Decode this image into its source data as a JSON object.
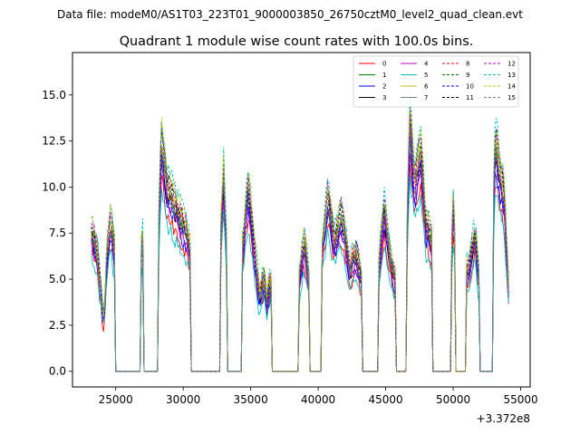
{
  "chart_data": {
    "type": "line",
    "suptitle": "Data file: modeM0/AS1T03_223T01_9000003850_26750cztM0_level2_quad_clean.evt",
    "title": "Quadrant 1 module wise count rates with 100.0s bins.",
    "xlabel": "",
    "ylabel": "",
    "x_offset_label": "+3.372e8",
    "xlim": [
      21800,
      55700
    ],
    "ylim": [
      -0.85,
      17.3
    ],
    "xticks": [
      25000,
      30000,
      35000,
      40000,
      45000,
      50000,
      55000
    ],
    "xtick_labels": [
      "25000",
      "30000",
      "35000",
      "40000",
      "45000",
      "50000",
      "55000"
    ],
    "yticks": [
      0.0,
      2.5,
      5.0,
      7.5,
      10.0,
      12.5,
      15.0
    ],
    "ytick_labels": [
      "0.0",
      "2.5",
      "5.0",
      "7.5",
      "10.0",
      "12.5",
      "15.0"
    ],
    "legend_location": "upper right",
    "legend_columns": 4,
    "segments": [
      {
        "start": 23200,
        "end": 24900,
        "profile": [
          [
            0,
            7.5
          ],
          [
            0.25,
            6.5
          ],
          [
            0.48,
            3.1
          ],
          [
            0.56,
            3.0
          ],
          [
            0.7,
            6.8
          ],
          [
            0.85,
            8.0
          ],
          [
            1,
            6.5
          ]
        ]
      },
      {
        "start": 26900,
        "end": 27050,
        "profile": [
          [
            0,
            6.5
          ],
          [
            0.5,
            7.6
          ],
          [
            1,
            6.2
          ]
        ]
      },
      {
        "start": 28200,
        "end": 30500,
        "profile": [
          [
            0,
            8.0
          ],
          [
            0.08,
            12.5
          ],
          [
            0.25,
            10.0
          ],
          [
            0.6,
            8.6
          ],
          [
            0.9,
            7.5
          ],
          [
            1,
            6.5
          ]
        ]
      },
      {
        "start": 32800,
        "end": 33200,
        "profile": [
          [
            0,
            8.0
          ],
          [
            0.5,
            10.5
          ],
          [
            1,
            7.0
          ]
        ]
      },
      {
        "start": 34400,
        "end": 36500,
        "profile": [
          [
            0,
            6.5
          ],
          [
            0.2,
            10.0
          ],
          [
            0.45,
            6.0
          ],
          [
            0.6,
            4.0
          ],
          [
            0.75,
            5.0
          ],
          [
            0.85,
            3.8
          ],
          [
            1,
            5.0
          ]
        ]
      },
      {
        "start": 38600,
        "end": 39300,
        "profile": [
          [
            0,
            5.0
          ],
          [
            0.5,
            7.0
          ],
          [
            1,
            5.0
          ]
        ]
      },
      {
        "start": 40300,
        "end": 43200,
        "profile": [
          [
            0,
            6.5
          ],
          [
            0.15,
            9.5
          ],
          [
            0.3,
            7.0
          ],
          [
            0.5,
            8.5
          ],
          [
            0.7,
            5.5
          ],
          [
            0.85,
            6.5
          ],
          [
            1,
            5.0
          ]
        ]
      },
      {
        "start": 44500,
        "end": 45700,
        "profile": [
          [
            0,
            5.5
          ],
          [
            0.3,
            9.0
          ],
          [
            0.7,
            6.0
          ],
          [
            1,
            5.0
          ]
        ]
      },
      {
        "start": 46600,
        "end": 48400,
        "profile": [
          [
            0,
            8.0
          ],
          [
            0.1,
            13.5
          ],
          [
            0.3,
            10.0
          ],
          [
            0.55,
            12.0
          ],
          [
            0.75,
            8.0
          ],
          [
            1,
            7.0
          ]
        ]
      },
      {
        "start": 49900,
        "end": 50150,
        "profile": [
          [
            0,
            7.0
          ],
          [
            0.5,
            9.5
          ],
          [
            1,
            6.5
          ]
        ]
      },
      {
        "start": 51000,
        "end": 51900,
        "profile": [
          [
            0,
            5.5
          ],
          [
            0.4,
            6.5
          ],
          [
            0.7,
            7.5
          ],
          [
            1,
            5.0
          ]
        ]
      },
      {
        "start": 53000,
        "end": 54100,
        "profile": [
          [
            0,
            9.5
          ],
          [
            0.12,
            12.5
          ],
          [
            0.35,
            11.0
          ],
          [
            0.7,
            9.5
          ],
          [
            1,
            4.5
          ]
        ]
      }
    ],
    "series": [
      {
        "name": "0",
        "color": "#ff0000",
        "linestyle": "solid",
        "scale": 0.85
      },
      {
        "name": "1",
        "color": "#008000",
        "linestyle": "solid",
        "scale": 0.98
      },
      {
        "name": "2",
        "color": "#0000ff",
        "linestyle": "solid",
        "scale": 0.9
      },
      {
        "name": "3",
        "color": "#000000",
        "linestyle": "solid",
        "scale": 0.95
      },
      {
        "name": "4",
        "color": "#bf00bf",
        "linestyle": "solid",
        "scale": 0.92
      },
      {
        "name": "5",
        "color": "#00bfbf",
        "linestyle": "solid",
        "scale": 0.8
      },
      {
        "name": "6",
        "color": "#bfbf00",
        "linestyle": "solid",
        "scale": 1.02
      },
      {
        "name": "7",
        "color": "#808080",
        "linestyle": "solid",
        "scale": 0.97
      },
      {
        "name": "8",
        "color": "#ff0000",
        "linestyle": "dashed",
        "scale": 1.0
      },
      {
        "name": "9",
        "color": "#008000",
        "linestyle": "dashed",
        "scale": 1.04
      },
      {
        "name": "10",
        "color": "#0000ff",
        "linestyle": "dashed",
        "scale": 0.96
      },
      {
        "name": "11",
        "color": "#000000",
        "linestyle": "dashed",
        "scale": 1.06
      },
      {
        "name": "12",
        "color": "#bf00bf",
        "linestyle": "dashed",
        "scale": 1.08
      },
      {
        "name": "13",
        "color": "#00bfbf",
        "linestyle": "dashed",
        "scale": 1.12
      },
      {
        "name": "14",
        "color": "#bfbf00",
        "linestyle": "dashed",
        "scale": 1.1
      },
      {
        "name": "15",
        "color": "#808080",
        "linestyle": "dashed",
        "scale": 1.0
      }
    ]
  }
}
